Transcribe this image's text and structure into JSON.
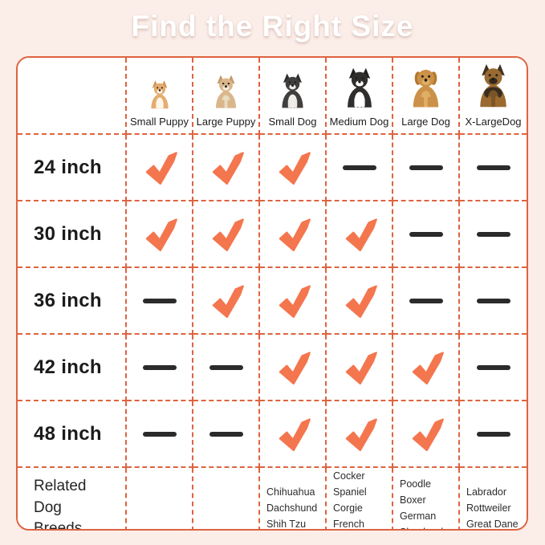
{
  "title": "Find the Right Size",
  "colors": {
    "background": "#FBEDE8",
    "accent": "#DD6440",
    "check": "#F4764E",
    "dash": "#2B2B2B",
    "title_text": "#FFFFFF"
  },
  "table": {
    "columns": [
      {
        "label": "Small Puppy",
        "dog": "corgi-puppy"
      },
      {
        "label": "Large Puppy",
        "dog": "chihuahua"
      },
      {
        "label": "Small Dog",
        "dog": "french-bulldog"
      },
      {
        "label": "Medium Dog",
        "dog": "border-collie"
      },
      {
        "label": "Large Dog",
        "dog": "golden-retriever"
      },
      {
        "label": "X-LargeDog",
        "dog": "german-shepherd"
      }
    ],
    "rows": [
      {
        "label": "24 inch",
        "marks": [
          "check",
          "check",
          "check",
          "dash",
          "dash",
          "dash"
        ]
      },
      {
        "label": "30 inch",
        "marks": [
          "check",
          "check",
          "check",
          "check",
          "dash",
          "dash"
        ]
      },
      {
        "label": "36 inch",
        "marks": [
          "dash",
          "check",
          "check",
          "check",
          "dash",
          "dash"
        ]
      },
      {
        "label": "42 inch",
        "marks": [
          "dash",
          "dash",
          "check",
          "check",
          "check",
          "dash"
        ]
      },
      {
        "label": "48 inch",
        "marks": [
          "dash",
          "dash",
          "check",
          "check",
          "check",
          "dash"
        ]
      }
    ],
    "breeds_row": {
      "label": "Related Dog Breeds",
      "cells": [
        [],
        [],
        [
          "Chihuahua",
          "Dachshund",
          "Shih Tzu"
        ],
        [
          "Cocker Spaniel",
          "Corgie",
          "French Bulldog"
        ],
        [
          "Poodle",
          "Boxer",
          "German",
          "Shepherd"
        ],
        [
          "Labrador",
          "Rottweiler",
          "Great Dane"
        ]
      ]
    }
  }
}
